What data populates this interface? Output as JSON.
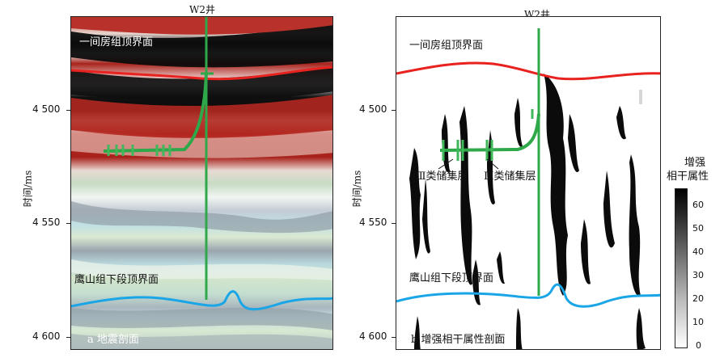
{
  "panel_a": {
    "well_label": "W2井",
    "top_horizon": "一间房组顶界面",
    "bottom_horizon": "鹰山组下段顶界面",
    "caption": "a 地震剖面",
    "axis_label": "时间/ms",
    "ticks": [
      "4 500",
      "4 550",
      "4 600"
    ]
  },
  "panel_b": {
    "well_label": "W2井",
    "top_horizon": "一间房组顶界面",
    "bottom_horizon": "鹰山组下段顶界面",
    "caption": "b 增强相干属性剖面",
    "axis_label": "时间/ms",
    "reservoir_label_1": "Ⅲ类储集层",
    "reservoir_label_2": "Ⅲ类储集层",
    "ticks": [
      "4 500",
      "4 550",
      "4 600"
    ]
  },
  "colorbar": {
    "title_line1": "增强",
    "title_line2": "相干属性",
    "ticks": [
      "60",
      "50",
      "40",
      "30",
      "20",
      "10",
      "0"
    ]
  },
  "colors": {
    "top_horizon": "#e8221f",
    "bottom_horizon": "#1aa6e6",
    "well": "#2fa84a",
    "seismic_red": "#b02a22",
    "seismic_pale": "#c9ddc6"
  }
}
